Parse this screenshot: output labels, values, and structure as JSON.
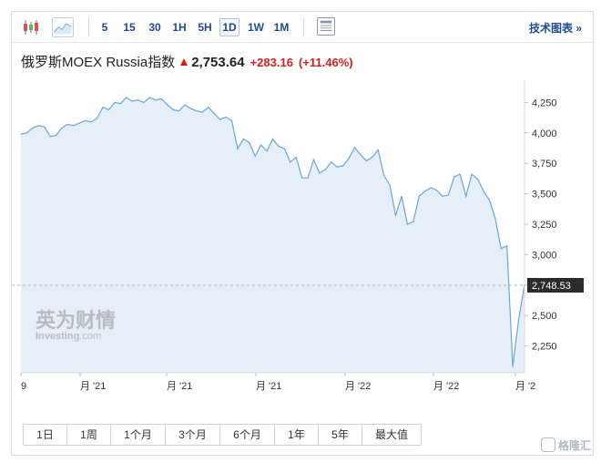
{
  "toolbar": {
    "intervals": [
      "5",
      "15",
      "30",
      "1H",
      "5H",
      "1D",
      "1W",
      "1M"
    ],
    "active_interval": "1D",
    "tech_chart_label": "技术图表 »"
  },
  "quote": {
    "name": "俄罗斯MOEX Russia指数",
    "price": "2,753.64",
    "change": "+283.16",
    "change_pct": "(+11.46%)",
    "color_up": "#d91e18"
  },
  "watermark": {
    "cn": "英为财情",
    "en": "Investing",
    "en_suffix": ".com"
  },
  "chart_data": {
    "type": "area",
    "x_tick_labels": [
      "9",
      "月 '21",
      "月 '21",
      "月 '21",
      "月 '22",
      "月 '22",
      "月 '2"
    ],
    "y_ticks": [
      2250,
      2500,
      2750,
      3000,
      3250,
      3500,
      3750,
      4000,
      4250
    ],
    "y_tick_labels": [
      "2,250",
      "2,500",
      "2,750",
      "3,000",
      "3,250",
      "3,500",
      "3,750",
      "4,000",
      "4,250"
    ],
    "ylim": [
      2030,
      4380
    ],
    "last_value": 2748.53,
    "last_value_label": "2,748.53",
    "values": [
      3990,
      4000,
      4040,
      4060,
      4050,
      3970,
      3980,
      4040,
      4070,
      4060,
      4080,
      4100,
      4090,
      4120,
      4210,
      4190,
      4250,
      4240,
      4290,
      4260,
      4270,
      4250,
      4290,
      4270,
      4280,
      4230,
      4190,
      4180,
      4230,
      4200,
      4180,
      4170,
      4210,
      4160,
      4110,
      4130,
      4100,
      3870,
      3950,
      3920,
      3810,
      3900,
      3850,
      3950,
      3890,
      3870,
      3760,
      3800,
      3630,
      3630,
      3780,
      3670,
      3700,
      3760,
      3720,
      3730,
      3790,
      3880,
      3820,
      3770,
      3800,
      3860,
      3650,
      3570,
      3320,
      3480,
      3250,
      3270,
      3480,
      3520,
      3550,
      3530,
      3480,
      3490,
      3640,
      3660,
      3480,
      3660,
      3620,
      3520,
      3450,
      3300,
      3050,
      3070,
      2080,
      2470,
      2748.53
    ],
    "line_color": "#6aa6d6",
    "fill_color": "#e6eff8",
    "grid": false
  },
  "range_buttons": [
    "1日",
    "1周",
    "1个月",
    "3个月",
    "6个月",
    "1年",
    "5年",
    "最大值"
  ],
  "brand": "格隆汇"
}
